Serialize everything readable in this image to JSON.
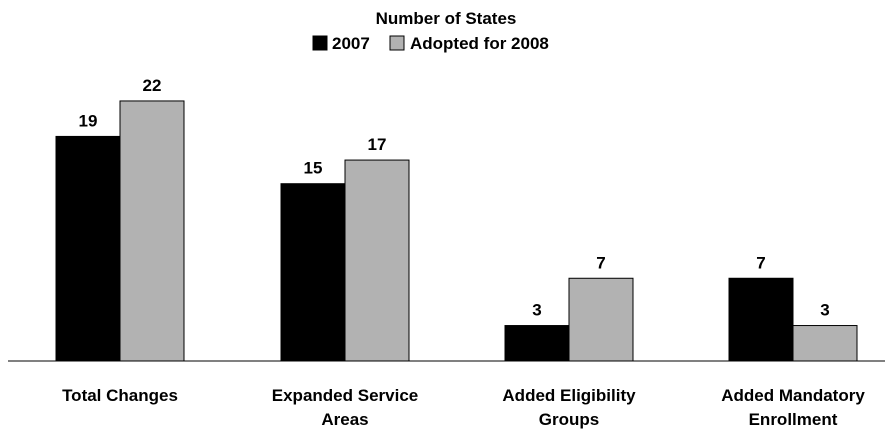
{
  "chart_data": {
    "type": "bar",
    "title": "Number of States",
    "xlabel": "",
    "ylabel": "",
    "ylim": [
      0,
      22
    ],
    "grid": false,
    "legend": "top-center",
    "categories": [
      [
        "Total Changes"
      ],
      [
        "Expanded Service",
        "Areas"
      ],
      [
        "Added Eligibility",
        "Groups"
      ],
      [
        "Added Mandatory",
        "Enrollment"
      ]
    ],
    "series": [
      {
        "name": "2007",
        "color": "#000000",
        "values": [
          19,
          15,
          3,
          7
        ]
      },
      {
        "name": "Adopted for 2008",
        "color": "#b2b2b2",
        "values": [
          22,
          17,
          7,
          3
        ]
      }
    ]
  }
}
